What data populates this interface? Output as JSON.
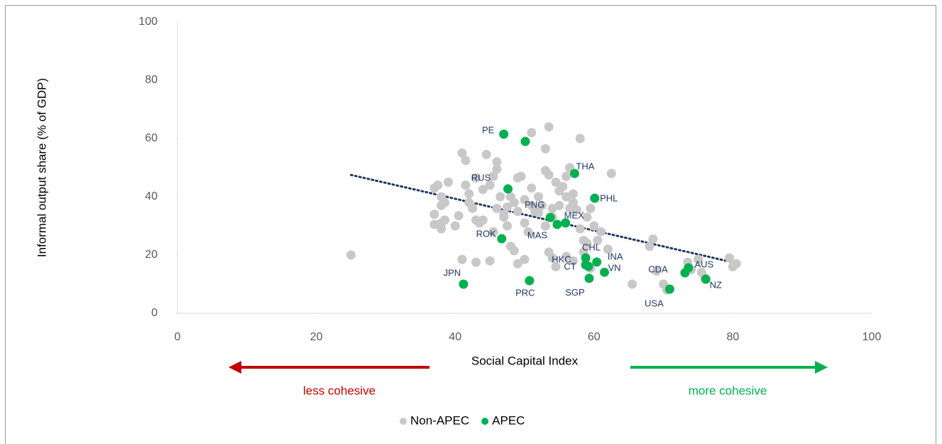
{
  "chart_data": {
    "type": "scatter",
    "x_label": "Social Capital Index",
    "y_label": "Informal output share (% of GDP)",
    "xlim": [
      0,
      100
    ],
    "xticks": [
      0,
      20,
      40,
      60,
      80,
      100
    ],
    "ylim": [
      0,
      100
    ],
    "yticks": [
      0,
      20,
      40,
      60,
      80,
      100
    ],
    "grid": false,
    "legend": "bottom",
    "annotations": [
      {
        "text": "less cohesive",
        "color": "#c00000"
      },
      {
        "text": "more cohesive",
        "color": "#00b050"
      }
    ],
    "trendline": {
      "color": "#1f3864",
      "x": [
        25,
        80
      ],
      "y": [
        47.5,
        17.5
      ]
    },
    "series": [
      {
        "name": "Non-APEC",
        "color": "#c8c8c8",
        "x": [
          25,
          37,
          37.5,
          38,
          39,
          38,
          38.5,
          37,
          37,
          38,
          38.5,
          38,
          40,
          40.5,
          41,
          41.5,
          41.5,
          42,
          42,
          42.5,
          43,
          43,
          43.5,
          44,
          44,
          44.5,
          45,
          45.5,
          45.5,
          46,
          46,
          46,
          46.5,
          47,
          47,
          47.5,
          47.5,
          48,
          48.5,
          48,
          48.5,
          49,
          49,
          49.5,
          50,
          50,
          50.5,
          51,
          51,
          51,
          51.5,
          52,
          52,
          52.5,
          53,
          53,
          53,
          53.5,
          53.5,
          54,
          54,
          54.5,
          55,
          55,
          55.5,
          56,
          56,
          56.5,
          56.5,
          57,
          57,
          57.5,
          58,
          58,
          58.5,
          59,
          59,
          59.5,
          60,
          60.5,
          61,
          62,
          62.5,
          53.5,
          54,
          54.5,
          56,
          57,
          58.5,
          59.5,
          41,
          43,
          45,
          49,
          50,
          65.5,
          68,
          68.5,
          69,
          70,
          70.5,
          73.5,
          74,
          75,
          75.5,
          79.5,
          80,
          80.5,
          76
        ],
        "y": [
          20,
          43,
          44,
          40,
          45,
          37,
          38,
          34,
          30.5,
          31,
          32,
          29,
          30,
          33.5,
          55,
          52.5,
          44,
          41,
          38,
          36,
          46.5,
          32,
          31,
          32,
          42.5,
          54.5,
          44,
          47,
          28,
          52,
          49.5,
          36,
          40,
          34,
          33,
          30,
          36.5,
          40,
          38,
          23,
          21.5,
          35,
          46.5,
          47,
          39,
          31,
          28,
          62,
          43,
          37,
          35,
          34.5,
          40,
          37,
          56.5,
          49,
          30,
          64,
          47.5,
          36,
          33,
          45,
          37,
          42,
          43.5,
          47,
          40,
          50,
          36,
          41,
          38,
          35.5,
          60,
          29,
          25,
          33,
          24,
          36,
          30,
          25,
          28,
          22,
          48,
          21,
          19,
          16,
          19.5,
          18,
          21,
          15.5,
          18.5,
          17.5,
          18,
          17,
          18.5,
          10,
          23,
          25.5,
          14.5,
          10,
          8,
          17.5,
          15,
          18.5,
          14,
          19,
          16,
          17,
          12
        ]
      },
      {
        "name": "APEC",
        "color": "#00b050",
        "x": [
          47.0,
          41.2,
          50.7,
          59.3,
          58.8,
          59.2,
          58.8,
          60.4,
          61.5,
          60.1,
          57.2,
          53.7,
          55.9,
          54.7,
          47.6,
          46.7,
          70.9,
          73.1,
          73.6,
          76.1,
          50.1
        ],
        "y": [
          61.5,
          10.0,
          11.2,
          12.0,
          16.6,
          16.1,
          19.0,
          17.6,
          14.1,
          39.5,
          48.0,
          32.9,
          31.0,
          30.5,
          42.7,
          25.6,
          8.3,
          13.9,
          15.6,
          11.7,
          59.0
        ],
        "labels": [
          "PE",
          "JPN",
          "PRC",
          "SGP",
          "CT",
          "HKC",
          "CHL",
          "INA",
          "VN",
          "PHL",
          "THA",
          "PNG",
          "MEX",
          "MAS",
          "RUS",
          "ROK",
          "USA",
          "CDA",
          "AUS",
          "NZ",
          null
        ]
      }
    ]
  }
}
